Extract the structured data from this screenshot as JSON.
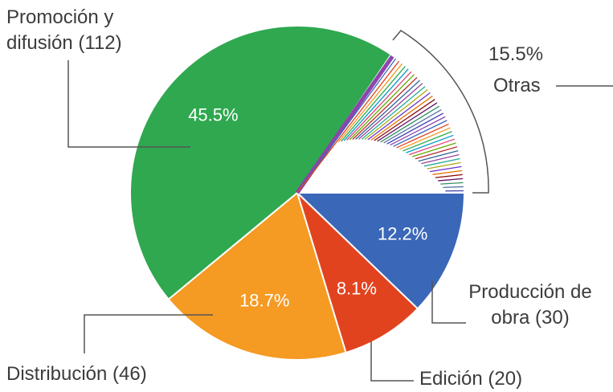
{
  "chart_data": {
    "type": "pie",
    "categories": [
      "Producción de obra (30)",
      "Edición (20)",
      "Distribución (46)",
      "Promoción y difusión (112)",
      "Otras"
    ],
    "values": [
      12.2,
      8.1,
      18.7,
      45.5,
      15.5
    ],
    "value_labels": [
      "12.2%",
      "8.1%",
      "18.7%",
      "45.5%",
      "15.5%"
    ],
    "colors": [
      "#3a67b8",
      "#e2431f",
      "#f59a23",
      "#2fa84f",
      "#ffffff"
    ]
  }
}
